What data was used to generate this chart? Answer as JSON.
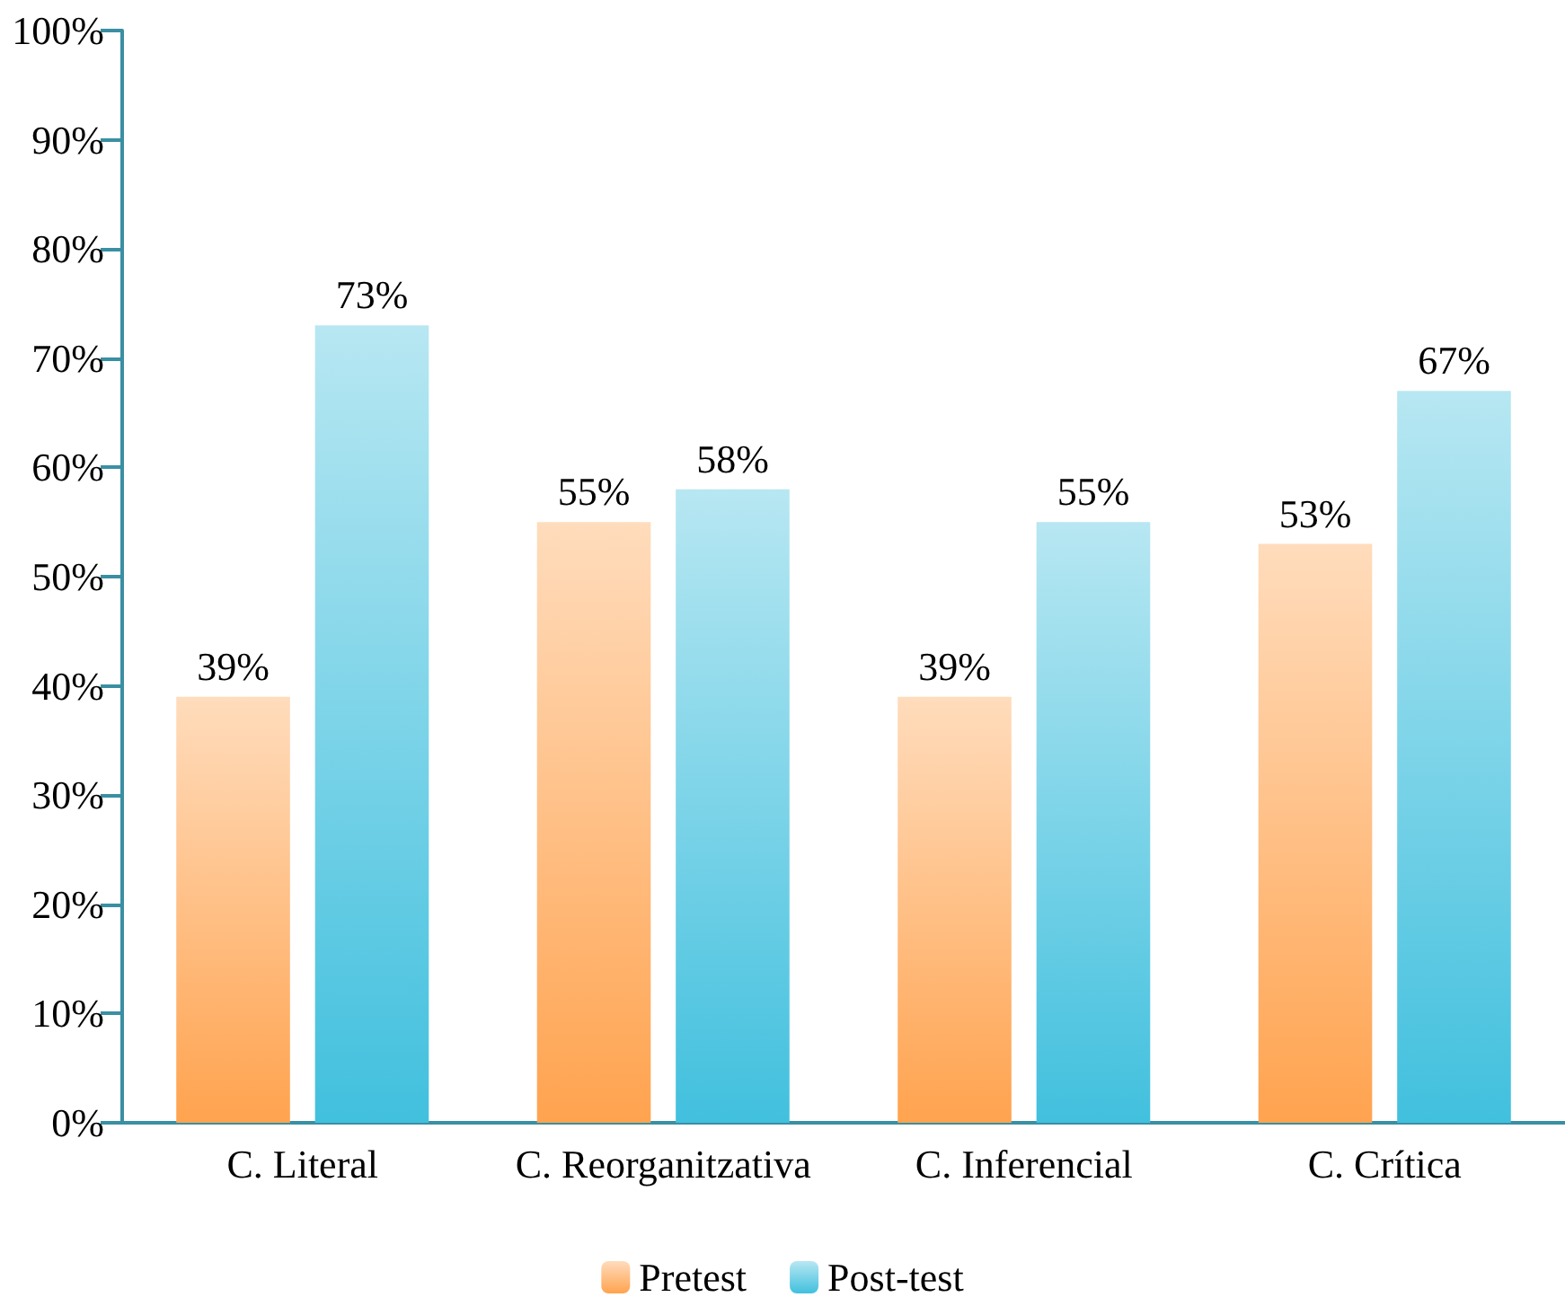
{
  "chart_data": {
    "type": "bar",
    "categories": [
      "C. Literal",
      "C. Reorganitzativa",
      "C. Inferencial",
      "C. Crítica"
    ],
    "series": [
      {
        "name": "Pretest",
        "color": "#ffa34f",
        "values": [
          39,
          55,
          39,
          53
        ],
        "value_labels": [
          "39%",
          "55%",
          "39%",
          "53%"
        ]
      },
      {
        "name": "Post-test",
        "color": "#41c0de",
        "values": [
          73,
          58,
          55,
          67
        ],
        "value_labels": [
          "73%",
          "58%",
          "55%",
          "67%"
        ]
      }
    ],
    "ylim": [
      0,
      100
    ],
    "yticks": [
      {
        "value": 0,
        "label": "0%"
      },
      {
        "value": 10,
        "label": "10%"
      },
      {
        "value": 20,
        "label": "20%"
      },
      {
        "value": 30,
        "label": "30%"
      },
      {
        "value": 40,
        "label": "40%"
      },
      {
        "value": 50,
        "label": "50%"
      },
      {
        "value": 60,
        "label": "60%"
      },
      {
        "value": 70,
        "label": "70%"
      },
      {
        "value": 80,
        "label": "80%"
      },
      {
        "value": 90,
        "label": "90%"
      },
      {
        "value": 100,
        "label": "100%"
      }
    ],
    "grid": false,
    "legend": "bottom"
  }
}
